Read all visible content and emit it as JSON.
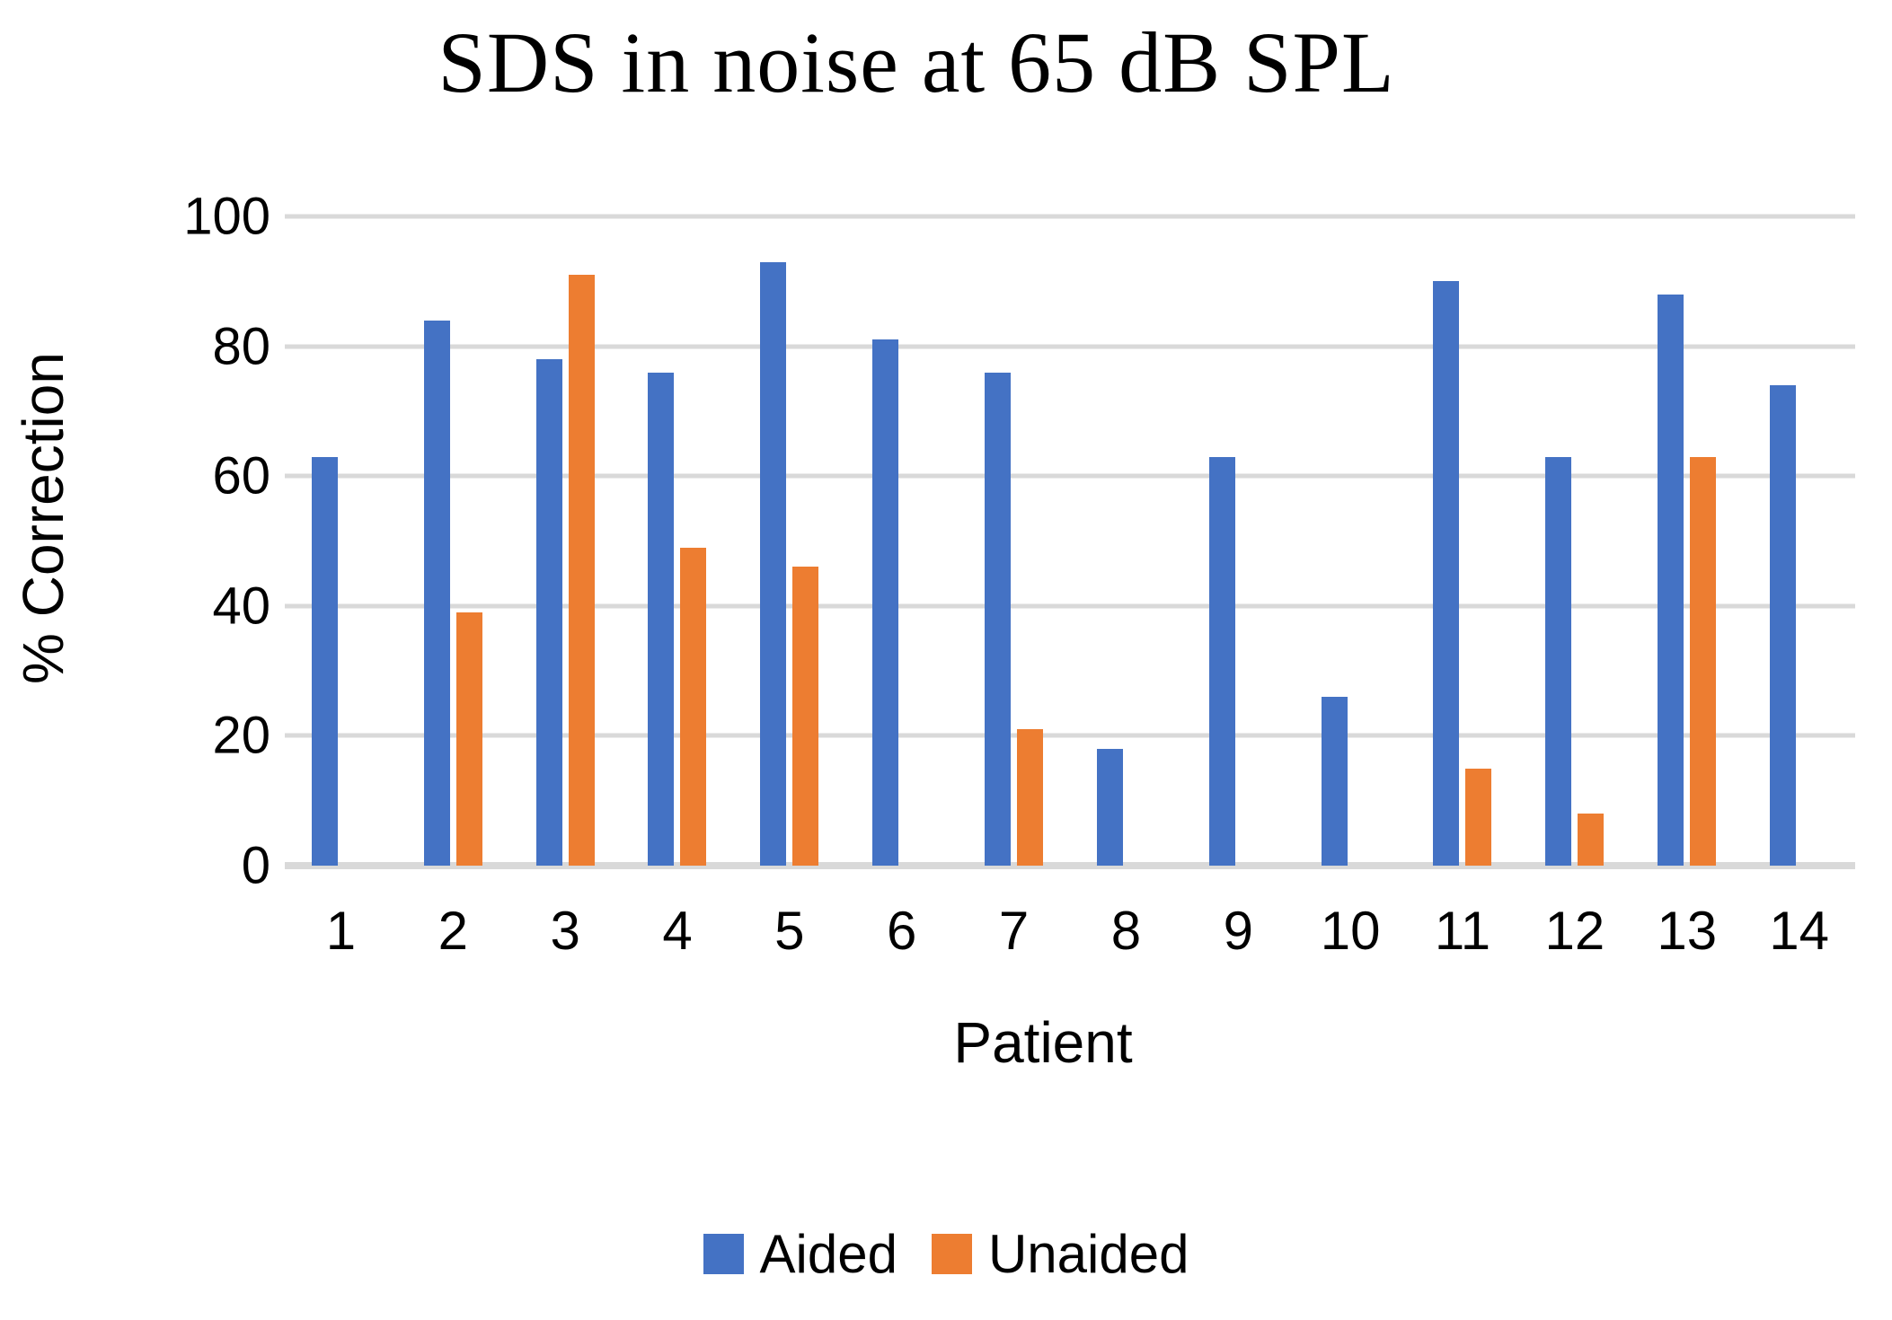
{
  "title": "SDS in noise at 65 dB SPL",
  "colors": {
    "aided": "#4472C4",
    "unaided": "#ED7D31",
    "gridline": "#D9D9D9",
    "axis_line": "#D9D9D9",
    "text": "#000000",
    "background": "#FFFFFF"
  },
  "chart_data": {
    "type": "bar",
    "title": "SDS in noise at 65 dB SPL",
    "xlabel": "Patient",
    "ylabel": "% Correction",
    "ylim": [
      0,
      100
    ],
    "yticks": [
      0,
      20,
      40,
      60,
      80,
      100
    ],
    "grid": "horizontal gridlines on",
    "legend_position": "bottom",
    "categories": [
      "1",
      "2",
      "3",
      "4",
      "5",
      "6",
      "7",
      "8",
      "9",
      "10",
      "11",
      "12",
      "13",
      "14"
    ],
    "series": [
      {
        "name": "Aided",
        "color": "#4472C4",
        "values": [
          63,
          84,
          78,
          76,
          93,
          81,
          76,
          18,
          63,
          26,
          90,
          63,
          88,
          74
        ]
      },
      {
        "name": "Unaided",
        "color": "#ED7D31",
        "values": [
          null,
          39,
          91,
          49,
          46,
          null,
          21,
          null,
          null,
          null,
          15,
          8,
          63,
          null
        ]
      }
    ]
  },
  "legend": {
    "items": [
      {
        "label": "Aided",
        "color": "#4472C4"
      },
      {
        "label": "Unaided",
        "color": "#ED7D31"
      }
    ]
  }
}
